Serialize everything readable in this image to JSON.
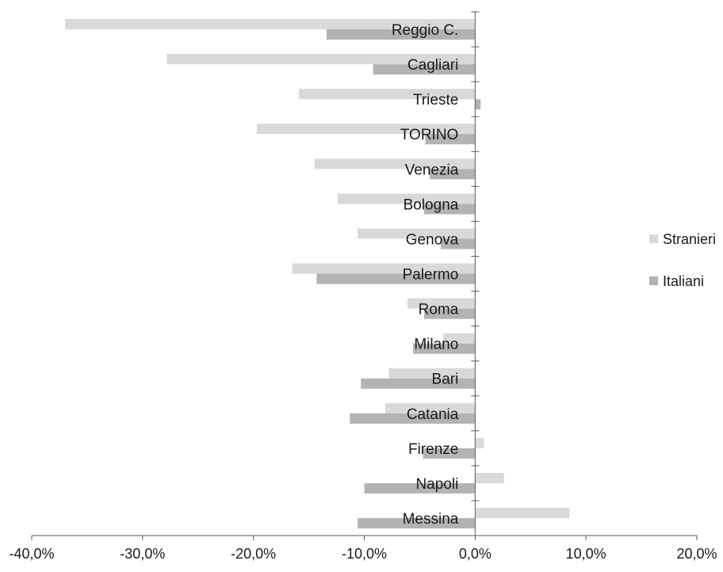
{
  "chart_data": {
    "type": "bar",
    "orientation": "horizontal",
    "title": "",
    "xlabel": "",
    "ylabel": "",
    "categories": [
      "Reggio C.",
      "Cagliari",
      "Trieste",
      "TORINO",
      "Venezia",
      "Bologna",
      "Genova",
      "Palermo",
      "Roma",
      "Milano",
      "Bari",
      "Catania",
      "Firenze",
      "Napoli",
      "Messina"
    ],
    "series": [
      {
        "name": "Stranieri",
        "color": "#d9d9d9",
        "values": [
          -37.0,
          -27.8,
          -15.9,
          -19.7,
          -14.5,
          -12.4,
          -10.6,
          -16.5,
          -6.1,
          -2.9,
          -7.8,
          -8.1,
          0.8,
          2.6,
          8.5
        ]
      },
      {
        "name": "Italiani",
        "color": "#b3b3b3",
        "values": [
          -13.4,
          -9.2,
          0.5,
          -4.5,
          -4.1,
          -4.6,
          -3.1,
          -14.3,
          -4.6,
          -5.6,
          -10.3,
          -11.3,
          -4.7,
          -10.0,
          -10.6
        ]
      }
    ],
    "xlim": [
      -40,
      20
    ],
    "xticks": [
      "-40,0%",
      "-30,0%",
      "-20,0%",
      "-10,0%",
      "0,0%",
      "10,0%",
      "20,0%"
    ],
    "grid": false,
    "legend_position": "right"
  }
}
